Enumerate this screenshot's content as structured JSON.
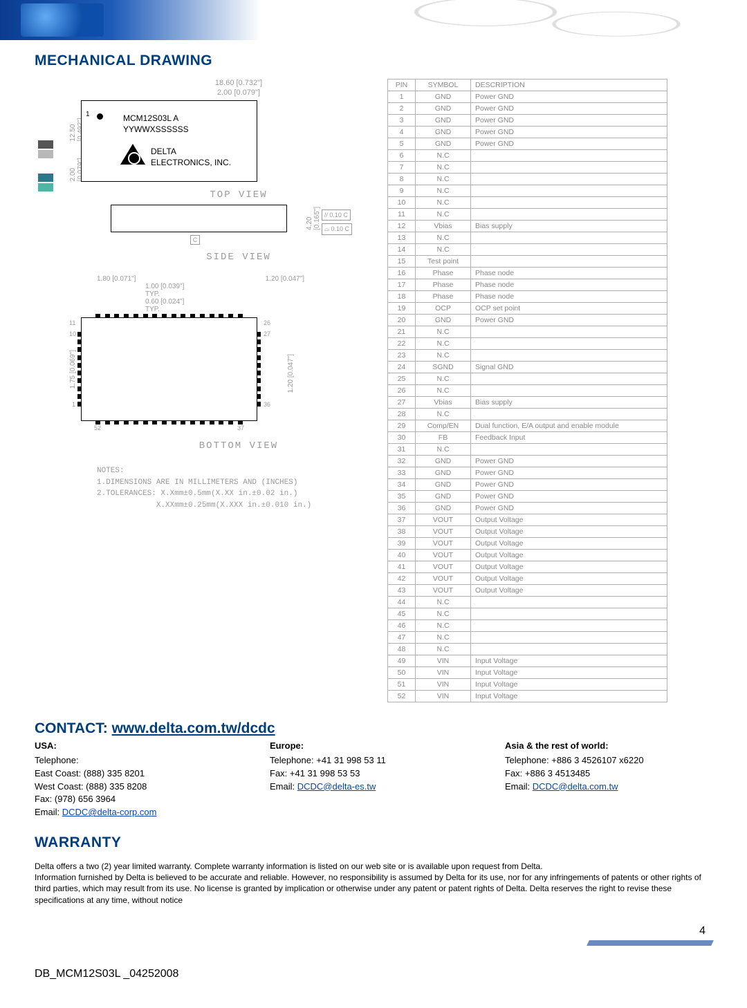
{
  "page": {
    "number": "4",
    "doc_id": "DB_MCM12S03L _04252008"
  },
  "sections": {
    "mechanical_title": "MECHANICAL DRAWING",
    "contact_title_prefix": "CONTACT: ",
    "contact_url": "www.delta.com.tw/dcdc",
    "warranty_title": "WARRANTY"
  },
  "side_squares": {
    "colors": [
      "#555555",
      "#b8b8b8",
      "#2a7a8c",
      "#4fb5a5"
    ]
  },
  "drawing": {
    "top_dims": {
      "outer": "18.60 [0.732\"]",
      "inner": "2.00 [0.079\"]"
    },
    "left_dims": {
      "outer": "12.50 [0.492\"]",
      "inner": "2.00 [0.079\"]"
    },
    "module_lines": {
      "l1": "MCM12S03L A",
      "l2": "YYWWXSSSSSS",
      "l3": "DELTA",
      "l4": "ELECTRONICS, INC."
    },
    "pin1_label": "1",
    "view_labels": {
      "top": "TOP VIEW",
      "side": "SIDE VIEW",
      "bottom": "BOTTOM VIEW"
    },
    "side_dim": "4.20 [0.165\"]",
    "side_callouts": [
      "// 0.10 C",
      "⌓ 0.10 C"
    ],
    "c_mark": "C",
    "bottom_dims": {
      "left": "1.80 [0.071\"]",
      "right": "1.20 [0.047\"]",
      "sub1": "1.00 [0.039\"]",
      "typ": "TYP.",
      "sub2": "0.60 [0.024\"]",
      "right_v": "1.20 [0.047\"]",
      "left_v": "1.75 [0.069\"]"
    },
    "pin_corners": {
      "tl": "11",
      "tr": "26",
      "tl2": "10",
      "tr2": "27",
      "bl": "1",
      "br": "36",
      "bll": "52",
      "brr": "37"
    },
    "notes_title": "NOTES:",
    "notes": [
      "1.DIMENSIONS ARE IN MILLIMETERS AND (INCHES)",
      "2.TOLERANCES: X.Xmm±0.5mm(X.XX in.±0.02 in.)",
      "             X.XXmm±0.25mm(X.XXX in.±0.010 in.)"
    ]
  },
  "pin_table": {
    "headers": [
      "PIN",
      "SYMBOL",
      "DESCRIPTION"
    ],
    "rows": [
      [
        "1",
        "GND",
        "Power GND"
      ],
      [
        "2",
        "GND",
        "Power GND"
      ],
      [
        "3",
        "GND",
        "Power GND"
      ],
      [
        "4",
        "GND",
        "Power GND"
      ],
      [
        "5",
        "GND",
        "Power GND"
      ],
      [
        "6",
        "N.C",
        ""
      ],
      [
        "7",
        "N.C",
        ""
      ],
      [
        "8",
        "N.C",
        ""
      ],
      [
        "9",
        "N.C",
        ""
      ],
      [
        "10",
        "N.C",
        ""
      ],
      [
        "11",
        "N.C",
        ""
      ],
      [
        "12",
        "Vbias",
        "Bias supply"
      ],
      [
        "13",
        "N.C",
        ""
      ],
      [
        "14",
        "N.C",
        ""
      ],
      [
        "15",
        "Test point",
        ""
      ],
      [
        "16",
        "Phase",
        "Phase node"
      ],
      [
        "17",
        "Phase",
        "Phase node"
      ],
      [
        "18",
        "Phase",
        "Phase node"
      ],
      [
        "19",
        "OCP",
        "OCP set point"
      ],
      [
        "20",
        "GND",
        "Power GND"
      ],
      [
        "21",
        "N.C",
        ""
      ],
      [
        "22",
        "N.C",
        ""
      ],
      [
        "23",
        "N.C",
        ""
      ],
      [
        "24",
        "SGND",
        "Signal GND"
      ],
      [
        "25",
        "N.C",
        ""
      ],
      [
        "26",
        "N.C",
        ""
      ],
      [
        "27",
        "Vbias",
        "Bias supply"
      ],
      [
        "28",
        "N.C",
        ""
      ],
      [
        "29",
        "Comp/EN",
        "Dual function, E/A output and enable module"
      ],
      [
        "30",
        "FB",
        "Feedback Input"
      ],
      [
        "31",
        "N.C",
        ""
      ],
      [
        "32",
        "GND",
        "Power GND"
      ],
      [
        "33",
        "GND",
        "Power GND"
      ],
      [
        "34",
        "GND",
        "Power GND"
      ],
      [
        "35",
        "GND",
        "Power GND"
      ],
      [
        "36",
        "GND",
        "Power GND"
      ],
      [
        "37",
        "VOUT",
        "Output Voltage"
      ],
      [
        "38",
        "VOUT",
        "Output Voltage"
      ],
      [
        "39",
        "VOUT",
        "Output Voltage"
      ],
      [
        "40",
        "VOUT",
        "Output Voltage"
      ],
      [
        "41",
        "VOUT",
        "Output Voltage"
      ],
      [
        "42",
        "VOUT",
        "Output Voltage"
      ],
      [
        "43",
        "VOUT",
        "Output Voltage"
      ],
      [
        "44",
        "N.C",
        ""
      ],
      [
        "45",
        "N.C",
        ""
      ],
      [
        "46",
        "N.C",
        ""
      ],
      [
        "47",
        "N.C",
        ""
      ],
      [
        "48",
        "N.C",
        ""
      ],
      [
        "49",
        "VIN",
        "Input Voltage"
      ],
      [
        "50",
        "VIN",
        "Input Voltage"
      ],
      [
        "51",
        "VIN",
        "Input Voltage"
      ],
      [
        "52",
        "VIN",
        "Input Voltage"
      ]
    ]
  },
  "contact": {
    "usa": {
      "title": "USA:",
      "lines": [
        "Telephone:",
        "East Coast: (888) 335 8201",
        "West Coast: (888) 335 8208",
        "Fax: (978) 656 3964"
      ],
      "email_label": "Email: ",
      "email": "DCDC@delta-corp.com"
    },
    "europe": {
      "title": "Europe:",
      "lines": [
        "Telephone: +41 31 998 53 11",
        "Fax: +41 31 998 53 53"
      ],
      "email_label": "Email: ",
      "email": "DCDC@delta-es.tw"
    },
    "asia": {
      "title": "Asia & the rest of world:",
      "lines": [
        "Telephone: +886 3 4526107 x6220",
        "Fax: +886 3 4513485"
      ],
      "email_label": "Email: ",
      "email": "DCDC@delta.com.tw"
    }
  },
  "warranty_text": "Delta offers a two (2) year limited warranty. Complete warranty information is listed on our web site or is available upon request from Delta.\nInformation furnished by Delta is believed to be accurate and reliable. However, no responsibility is assumed by Delta for its use, nor for any infringements of patents or other rights of third parties, which may result from its use. No license is granted by implication or otherwise under any patent or patent rights of Delta. Delta reserves the right to revise these specifications at any time, without notice"
}
